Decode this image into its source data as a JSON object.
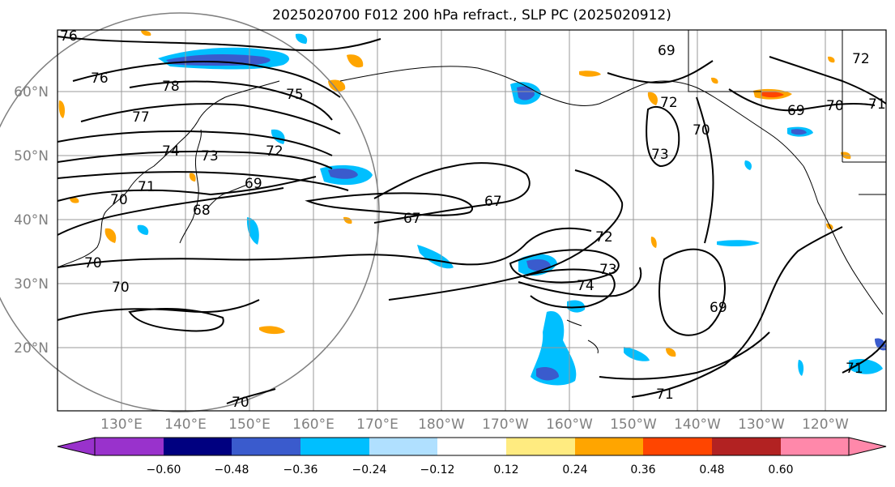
{
  "title": "2025020700 F012 200 hPa refract., SLP PC (2025020912)",
  "map": {
    "lat_labels": [
      "60°N",
      "50°N",
      "40°N",
      "30°N",
      "20°N"
    ],
    "lon_labels": [
      "130°E",
      "140°E",
      "150°E",
      "160°E",
      "170°E",
      "180°W",
      "170°W",
      "160°W",
      "150°W",
      "140°W",
      "130°W",
      "120°W"
    ],
    "grid_color": "#999999",
    "coastline_color": "#000000",
    "contour_color": "#000000"
  },
  "contours": {
    "labels": [
      "76",
      "76",
      "78",
      "75",
      "77",
      "74",
      "73",
      "72",
      "70",
      "71",
      "69",
      "68",
      "67",
      "67",
      "70",
      "70",
      "70",
      "69",
      "72",
      "73",
      "72",
      "73",
      "74",
      "69",
      "71",
      "71",
      "69",
      "70",
      "71",
      "72",
      "70"
    ]
  },
  "colorbar": {
    "ticks": [
      "−0.60",
      "−0.48",
      "−0.36",
      "−0.24",
      "−0.12",
      "0.12",
      "0.24",
      "0.36",
      "0.48",
      "0.60"
    ],
    "colors": [
      "#9932cc",
      "#000080",
      "#3a5bcd",
      "#00bfff",
      "#b0e0ff",
      "#ffffff",
      "#ffeb80",
      "#ffa500",
      "#ff4500",
      "#b22222",
      "#ff88aa"
    ]
  }
}
